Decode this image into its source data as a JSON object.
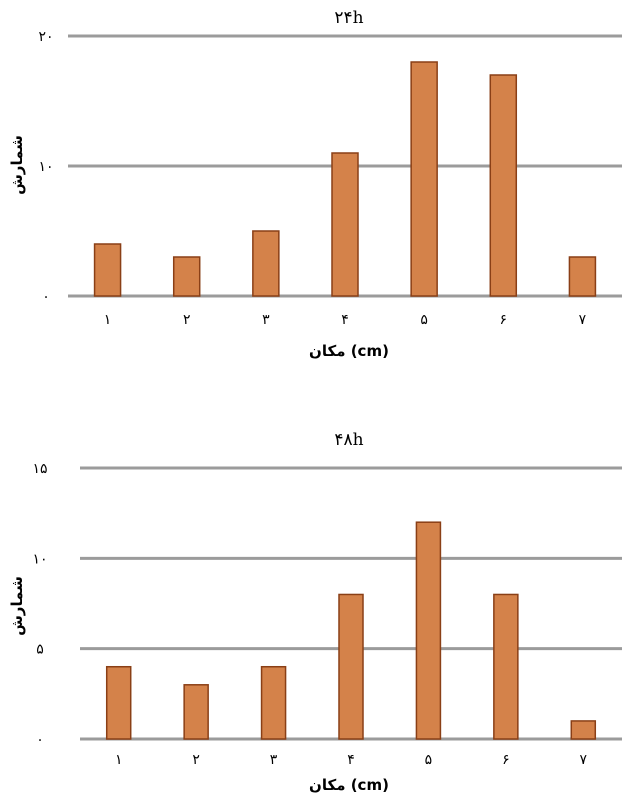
{
  "chart_data": [
    {
      "type": "bar",
      "title": "۲۴h",
      "ylabel": "شمارش",
      "xlabel": "مکان (cm)",
      "categories": [
        "۱",
        "۲",
        "۳",
        "۴",
        "۵",
        "۶",
        "۷"
      ],
      "values": [
        4,
        3,
        5,
        11,
        18,
        17,
        3
      ],
      "yticks": [
        0,
        10,
        20
      ],
      "ytick_labels": [
        "۰",
        "۱۰",
        "۲۰"
      ],
      "ylim": [
        0,
        20
      ],
      "grid": true,
      "colors": {
        "bar": "#d4824a",
        "bar_edge": "#8a3f16",
        "grid": "#9b9b9b"
      }
    },
    {
      "type": "bar",
      "title": "۴۸h",
      "ylabel": "شمارش",
      "xlabel": "مکان (cm)",
      "categories": [
        "۱",
        "۲",
        "۳",
        "۴",
        "۵",
        "۶",
        "۷"
      ],
      "values": [
        4,
        3,
        4,
        8,
        12,
        8,
        1
      ],
      "yticks": [
        0,
        5,
        10,
        15
      ],
      "ytick_labels": [
        "۰",
        "۵",
        "۱۰",
        "۱۵"
      ],
      "ylim": [
        0,
        15
      ],
      "grid": true,
      "colors": {
        "bar": "#d4824a",
        "bar_edge": "#8a3f16",
        "grid": "#9b9b9b"
      }
    }
  ]
}
